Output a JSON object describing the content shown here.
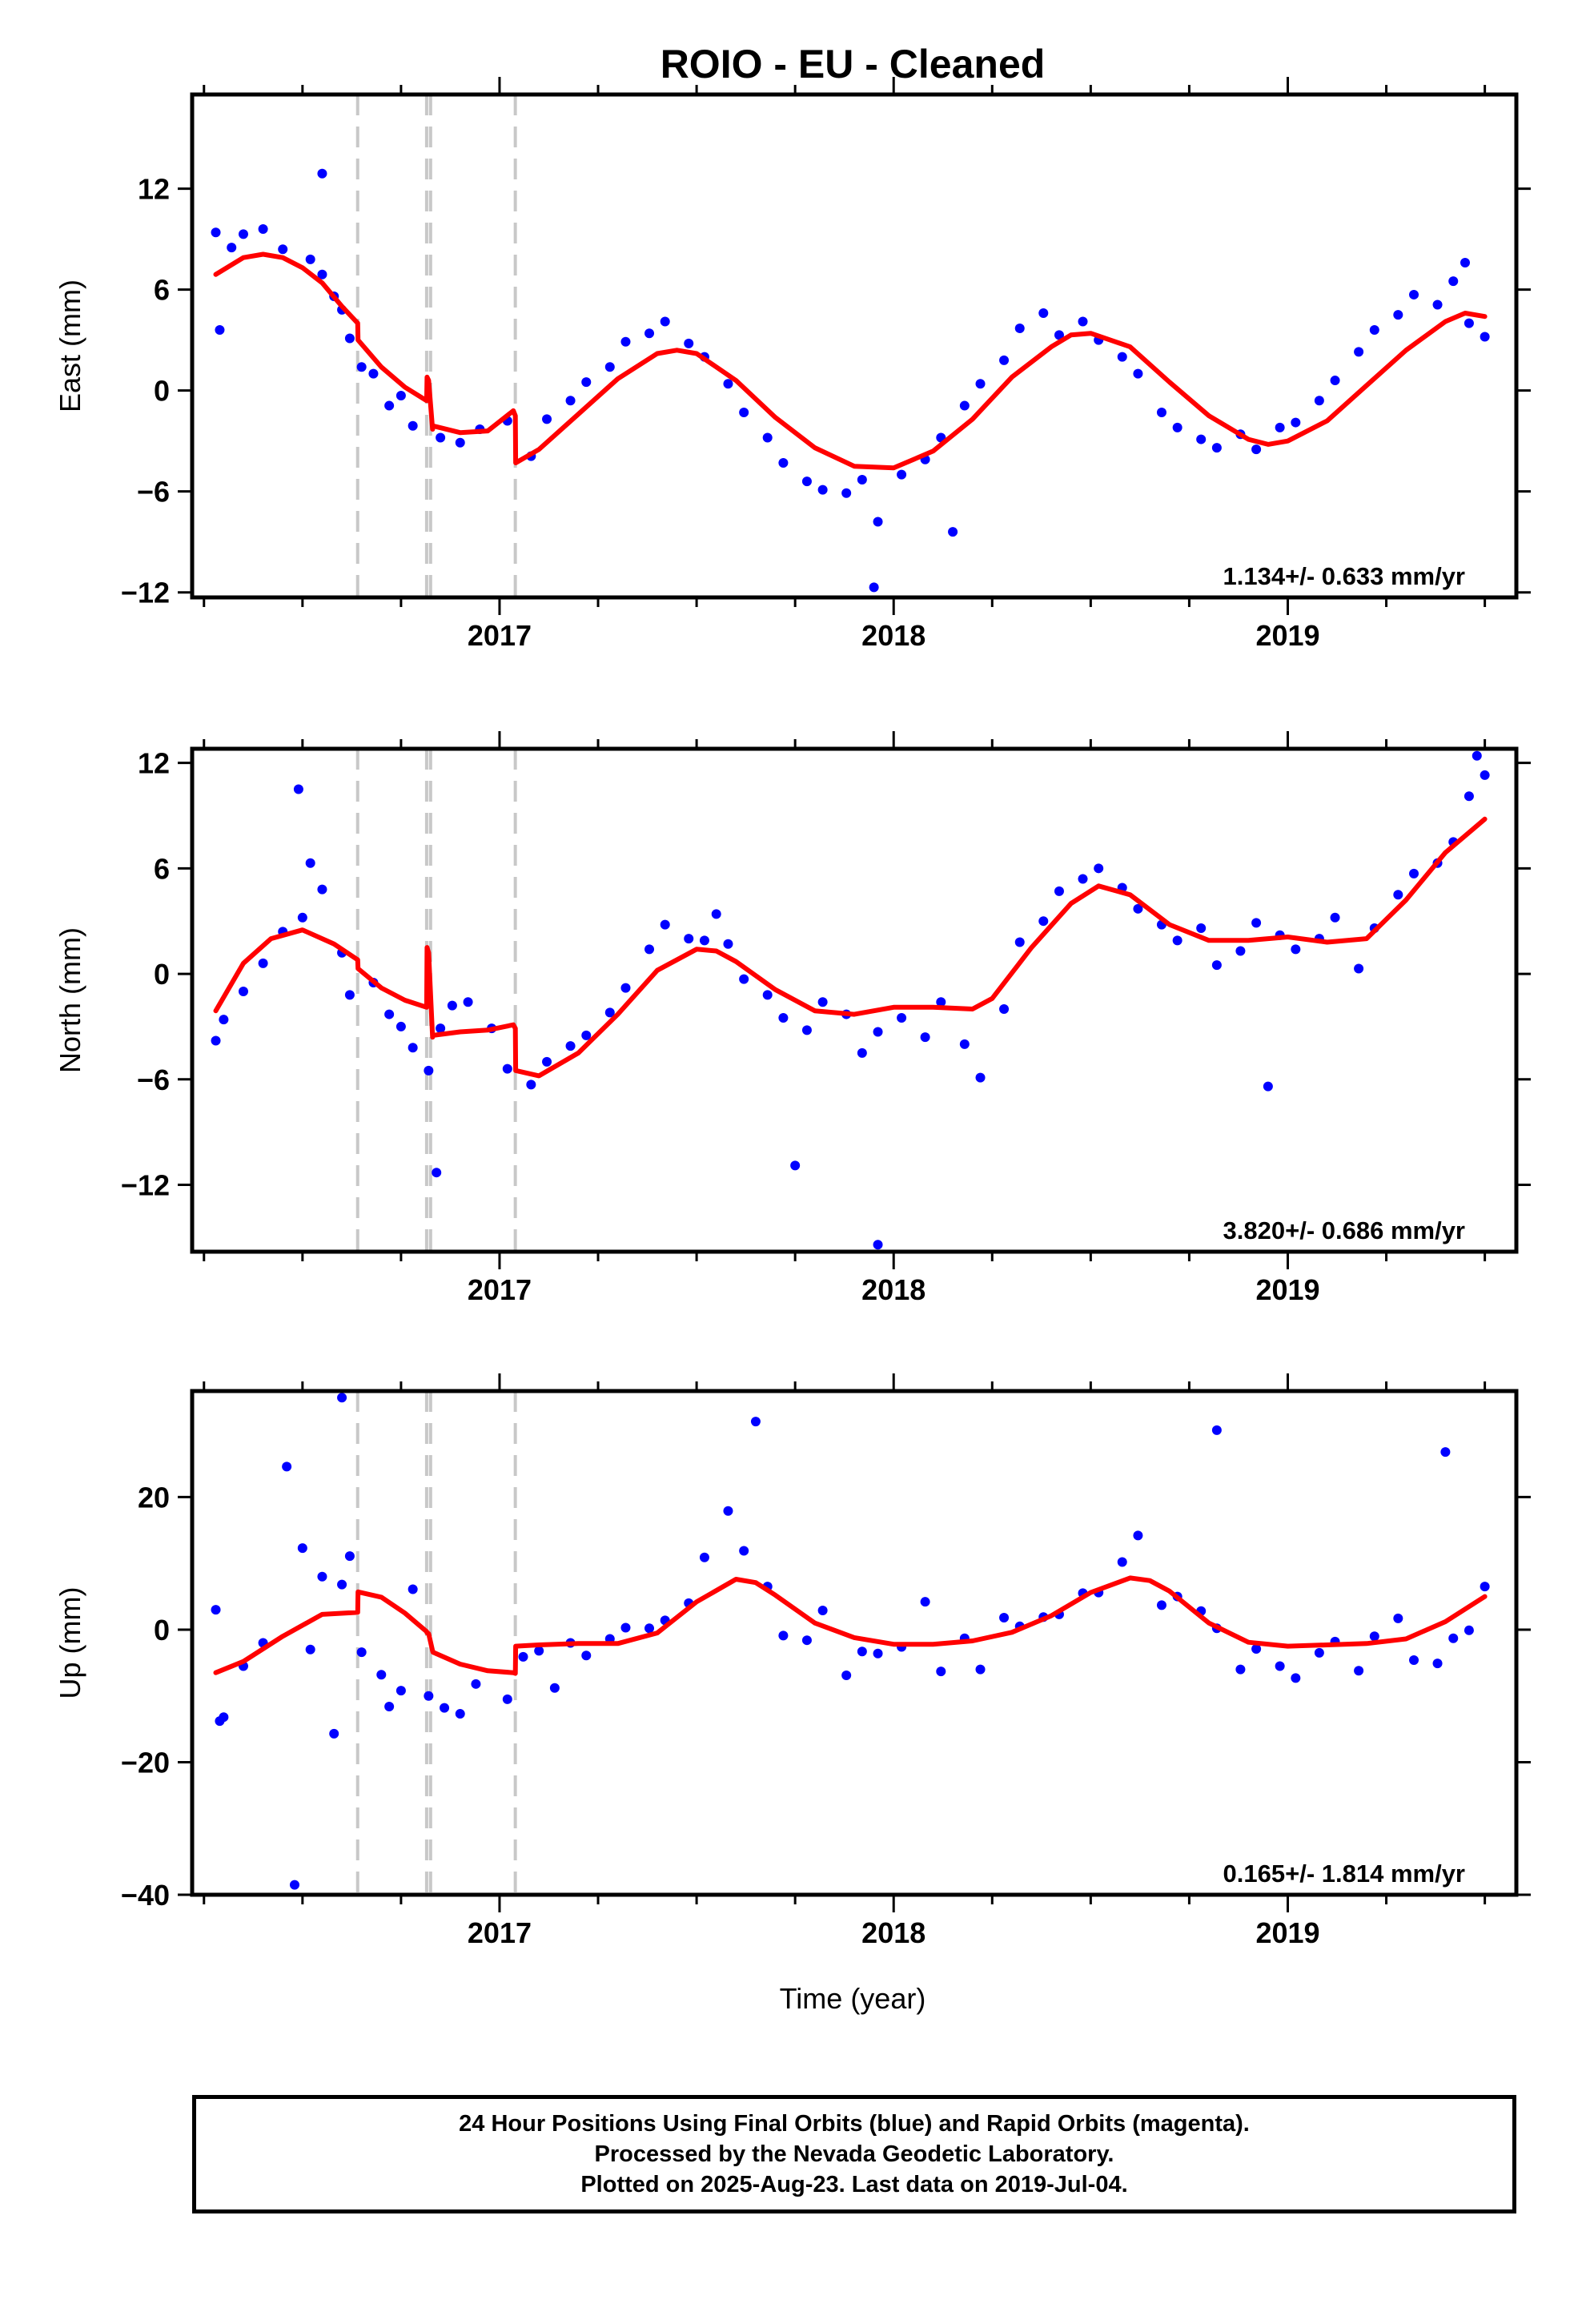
{
  "title": "ROIO  - EU - Cleaned",
  "xlabel": "Time (year)",
  "footer": {
    "line1": "24 Hour Positions Using Final Orbits (blue) and Rapid Orbits (magenta).",
    "line2": "Processed by the Nevada Geodetic Laboratory.",
    "line3": "Plotted on 2025-Aug-23. Last data on 2019-Jul-04."
  },
  "colors": {
    "points": "#0000ff",
    "model": "#ff0000",
    "offsets": "#c8c8c8"
  },
  "chart_data": [
    {
      "type": "scatter",
      "ylabel": "East (mm)",
      "rate": "1.134+/- 0.633 mm/yr",
      "xlim": [
        2016.22,
        2019.58
      ],
      "ylim": [
        -12.3,
        17.6
      ],
      "yticks": [
        -12,
        -6,
        0,
        6,
        12
      ],
      "xticks": [
        2017,
        2018,
        2019
      ],
      "offsets": [
        2016.64,
        2016.815,
        2016.825,
        2017.04
      ],
      "model": {
        "x": [
          2016.28,
          2016.35,
          2016.4,
          2016.45,
          2016.5,
          2016.55,
          2016.6,
          2016.64,
          2016.641,
          2016.7,
          2016.76,
          2016.815,
          2016.816,
          2016.82,
          2016.83,
          2016.831,
          2016.9,
          2016.97,
          2017.035,
          2017.04,
          2017.041,
          2017.1,
          2017.2,
          2017.3,
          2017.4,
          2017.45,
          2017.5,
          2017.6,
          2017.7,
          2017.8,
          2017.9,
          2018.0,
          2018.1,
          2018.2,
          2018.3,
          2018.4,
          2018.45,
          2018.5,
          2018.6,
          2018.7,
          2018.8,
          2018.9,
          2018.95,
          2019.0,
          2019.1,
          2019.2,
          2019.3,
          2019.4,
          2019.45,
          2019.5
        ],
        "y": [
          6.9,
          7.9,
          8.1,
          7.9,
          7.3,
          6.4,
          5.0,
          4.0,
          3.0,
          1.4,
          0.2,
          -0.6,
          0.8,
          0.6,
          -2.3,
          -2.1,
          -2.5,
          -2.4,
          -1.2,
          -1.5,
          -4.3,
          -3.5,
          -1.4,
          0.7,
          2.2,
          2.4,
          2.2,
          0.6,
          -1.6,
          -3.4,
          -4.5,
          -4.6,
          -3.6,
          -1.7,
          0.8,
          2.6,
          3.3,
          3.4,
          2.6,
          0.5,
          -1.5,
          -2.9,
          -3.2,
          -3.0,
          -1.8,
          0.3,
          2.4,
          4.1,
          4.6,
          4.4
        ]
      },
      "points": {
        "x": [
          2016.28,
          2016.29,
          2016.35,
          2016.32,
          2016.4,
          2016.45,
          2016.52,
          2016.55,
          2016.58,
          2016.6,
          2016.62,
          2016.65,
          2016.68,
          2016.72,
          2016.75,
          2016.78,
          2016.85,
          2016.9,
          2016.95,
          2017.02,
          2017.08,
          2017.12,
          2017.18,
          2017.22,
          2017.28,
          2017.32,
          2017.38,
          2017.42,
          2017.48,
          2017.52,
          2017.58,
          2017.62,
          2017.68,
          2017.72,
          2017.78,
          2017.82,
          2017.88,
          2017.92,
          2017.96,
          2018.02,
          2018.08,
          2018.12,
          2018.18,
          2018.22,
          2018.28,
          2018.32,
          2018.38,
          2018.42,
          2018.48,
          2018.52,
          2018.58,
          2018.62,
          2018.68,
          2018.72,
          2018.78,
          2018.82,
          2018.88,
          2018.92,
          2018.98,
          2019.02,
          2019.08,
          2019.12,
          2019.18,
          2019.22,
          2019.28,
          2019.32,
          2019.38,
          2019.42,
          2019.46,
          2019.5,
          2016.55,
          2017.95,
          2018.15,
          2019.45
        ],
        "y": [
          9.4,
          3.6,
          9.3,
          8.5,
          9.6,
          8.4,
          7.8,
          6.9,
          5.6,
          4.8,
          3.1,
          1.4,
          1.0,
          -0.9,
          -0.3,
          -2.1,
          -2.8,
          -3.1,
          -2.3,
          -1.8,
          -3.9,
          -1.7,
          -0.6,
          0.5,
          1.4,
          2.9,
          3.4,
          4.1,
          2.8,
          2.0,
          0.4,
          -1.3,
          -2.8,
          -4.3,
          -5.4,
          -5.9,
          -6.1,
          -5.3,
          -7.8,
          -5.0,
          -4.1,
          -2.8,
          -0.9,
          0.4,
          1.8,
          3.7,
          4.6,
          3.3,
          4.1,
          3.0,
          2.0,
          1.0,
          -1.3,
          -2.2,
          -2.9,
          -3.4,
          -2.6,
          -3.5,
          -2.2,
          -1.9,
          -0.6,
          0.6,
          2.3,
          3.6,
          4.5,
          5.7,
          5.1,
          6.5,
          4.0,
          3.2,
          12.9,
          -11.7,
          -8.4,
          7.6
        ]
      }
    },
    {
      "type": "scatter",
      "ylabel": "North (mm)",
      "rate": "3.820+/- 0.686 mm/yr",
      "xlim": [
        2016.22,
        2019.58
      ],
      "ylim": [
        -15.8,
        12.8
      ],
      "yticks": [
        -12,
        -6,
        0,
        6,
        12
      ],
      "xticks": [
        2017,
        2018,
        2019
      ],
      "offsets": [
        2016.64,
        2016.815,
        2016.825,
        2017.04
      ],
      "model": {
        "x": [
          2016.28,
          2016.35,
          2016.42,
          2016.5,
          2016.58,
          2016.64,
          2016.641,
          2016.7,
          2016.76,
          2016.815,
          2016.816,
          2016.82,
          2016.83,
          2016.831,
          2016.9,
          2016.97,
          2017.035,
          2017.04,
          2017.041,
          2017.1,
          2017.2,
          2017.3,
          2017.4,
          2017.5,
          2017.55,
          2017.6,
          2017.7,
          2017.8,
          2017.9,
          2018.0,
          2018.1,
          2018.2,
          2018.25,
          2018.35,
          2018.45,
          2018.52,
          2018.6,
          2018.7,
          2018.8,
          2018.9,
          2019.0,
          2019.1,
          2019.2,
          2019.3,
          2019.4,
          2019.5
        ],
        "y": [
          -2.1,
          0.6,
          2.0,
          2.5,
          1.7,
          0.8,
          0.3,
          -0.8,
          -1.5,
          -1.9,
          1.5,
          1.2,
          -3.6,
          -3.5,
          -3.3,
          -3.2,
          -2.9,
          -3.1,
          -5.5,
          -5.8,
          -4.5,
          -2.3,
          0.2,
          1.4,
          1.3,
          0.7,
          -0.9,
          -2.1,
          -2.3,
          -1.9,
          -1.9,
          -2.0,
          -1.4,
          1.5,
          4.0,
          5.0,
          4.5,
          2.8,
          1.9,
          1.9,
          2.1,
          1.8,
          2.0,
          4.2,
          6.9,
          8.8
        ]
      },
      "points": {
        "x": [
          2016.28,
          2016.3,
          2016.35,
          2016.4,
          2016.45,
          2016.5,
          2016.52,
          2016.55,
          2016.6,
          2016.62,
          2016.68,
          2016.72,
          2016.75,
          2016.78,
          2016.82,
          2016.85,
          2016.88,
          2016.92,
          2016.98,
          2017.02,
          2017.08,
          2017.12,
          2017.18,
          2017.22,
          2017.28,
          2017.32,
          2017.38,
          2017.42,
          2017.48,
          2017.52,
          2017.55,
          2017.58,
          2017.62,
          2017.68,
          2017.72,
          2017.78,
          2017.82,
          2017.88,
          2017.92,
          2017.96,
          2018.02,
          2018.08,
          2018.12,
          2018.18,
          2018.22,
          2018.28,
          2018.32,
          2018.38,
          2018.42,
          2018.48,
          2018.52,
          2018.58,
          2018.62,
          2018.68,
          2018.72,
          2018.78,
          2018.82,
          2018.88,
          2018.92,
          2018.98,
          2019.02,
          2019.08,
          2019.12,
          2019.18,
          2019.22,
          2019.28,
          2019.32,
          2019.38,
          2019.42,
          2019.46,
          2019.5,
          2016.49,
          2016.84,
          2017.75,
          2017.96,
          2018.95,
          2019.48
        ],
        "y": [
          -3.8,
          -2.6,
          -1.0,
          0.6,
          2.4,
          3.2,
          6.3,
          4.8,
          1.2,
          -1.2,
          -0.5,
          -2.3,
          -3.0,
          -4.2,
          -5.5,
          -3.1,
          -1.8,
          -1.6,
          -3.1,
          -5.4,
          -6.3,
          -5.0,
          -4.1,
          -3.5,
          -2.2,
          -0.8,
          1.4,
          2.8,
          2.0,
          1.9,
          3.4,
          1.7,
          -0.3,
          -1.2,
          -2.5,
          -3.2,
          -1.6,
          -2.3,
          -4.5,
          -3.3,
          -2.5,
          -3.6,
          -1.6,
          -4.0,
          -5.9,
          -2.0,
          1.8,
          3.0,
          4.7,
          5.4,
          6.0,
          4.9,
          3.7,
          2.8,
          1.9,
          2.6,
          0.5,
          1.3,
          2.9,
          2.2,
          1.4,
          2.0,
          3.2,
          0.3,
          2.6,
          4.5,
          5.7,
          6.3,
          7.5,
          10.1,
          11.3,
          10.5,
          -11.3,
          -10.9,
          -15.4,
          -6.4,
          12.4
        ]
      }
    },
    {
      "type": "scatter",
      "ylabel": "Up (mm)",
      "rate": "0.165+/- 1.814 mm/yr",
      "xlim": [
        2016.22,
        2019.58
      ],
      "ylim": [
        -40,
        36
      ],
      "yticks": [
        -40,
        -20,
        0,
        20
      ],
      "xticks": [
        2017,
        2018,
        2019
      ],
      "offsets": [
        2016.64,
        2016.815,
        2016.825,
        2017.04
      ],
      "model": {
        "x": [
          2016.28,
          2016.35,
          2016.45,
          2016.55,
          2016.64,
          2016.641,
          2016.7,
          2016.76,
          2016.815,
          2016.816,
          2016.82,
          2016.83,
          2016.831,
          2016.9,
          2016.97,
          2017.035,
          2017.04,
          2017.041,
          2017.1,
          2017.2,
          2017.3,
          2017.4,
          2017.5,
          2017.6,
          2017.65,
          2017.7,
          2017.8,
          2017.9,
          2018.0,
          2018.1,
          2018.2,
          2018.3,
          2018.4,
          2018.5,
          2018.6,
          2018.65,
          2018.7,
          2018.8,
          2018.9,
          2019.0,
          2019.1,
          2019.2,
          2019.3,
          2019.4,
          2019.5
        ],
        "y": [
          -6.5,
          -4.8,
          -1.0,
          2.3,
          2.6,
          5.7,
          4.9,
          2.5,
          -0.3,
          -0.5,
          -0.6,
          -3.2,
          -3.4,
          -5.2,
          -6.2,
          -6.5,
          -6.6,
          -2.5,
          -2.3,
          -2.1,
          -2.1,
          -0.5,
          4.2,
          7.6,
          7.1,
          5.2,
          1.0,
          -1.2,
          -2.2,
          -2.2,
          -1.7,
          -0.4,
          2.1,
          5.6,
          7.8,
          7.4,
          5.8,
          1.0,
          -1.9,
          -2.5,
          -2.3,
          -2.1,
          -1.4,
          1.2,
          5.0
        ]
      },
      "points": {
        "x": [
          2016.28,
          2016.29,
          2016.3,
          2016.35,
          2016.4,
          2016.46,
          2016.5,
          2016.52,
          2016.55,
          2016.58,
          2016.6,
          2016.62,
          2016.65,
          2016.7,
          2016.72,
          2016.75,
          2016.78,
          2016.82,
          2016.86,
          2016.9,
          2016.94,
          2017.02,
          2017.06,
          2017.1,
          2017.14,
          2017.18,
          2017.22,
          2017.28,
          2017.32,
          2017.38,
          2017.42,
          2017.48,
          2017.52,
          2017.58,
          2017.62,
          2017.68,
          2017.72,
          2017.78,
          2017.82,
          2017.88,
          2017.92,
          2017.96,
          2018.02,
          2018.08,
          2018.12,
          2018.18,
          2018.22,
          2018.28,
          2018.32,
          2018.38,
          2018.42,
          2018.48,
          2018.52,
          2018.58,
          2018.62,
          2018.68,
          2018.72,
          2018.78,
          2018.82,
          2018.88,
          2018.92,
          2018.98,
          2019.02,
          2019.08,
          2019.12,
          2019.18,
          2019.22,
          2019.28,
          2019.32,
          2019.38,
          2019.42,
          2019.46,
          2019.5,
          2016.6,
          2016.48,
          2017.65,
          2018.82,
          2019.4
        ],
        "y": [
          3.0,
          -13.8,
          -13.2,
          -5.5,
          -2.0,
          24.6,
          12.3,
          -3.0,
          8.0,
          -15.7,
          6.8,
          11.1,
          -3.4,
          -6.8,
          -11.6,
          -9.2,
          6.1,
          -10.0,
          -11.8,
          -12.7,
          -8.2,
          -10.5,
          -4.1,
          -3.2,
          -8.8,
          -2.0,
          -3.9,
          -1.4,
          0.3,
          0.2,
          1.4,
          4.0,
          10.9,
          17.9,
          11.9,
          6.5,
          -0.9,
          -1.6,
          2.9,
          -6.9,
          -3.3,
          -3.6,
          -2.6,
          4.2,
          -6.3,
          -1.3,
          -6.0,
          1.8,
          0.5,
          1.9,
          2.3,
          5.5,
          5.6,
          10.2,
          14.2,
          3.7,
          5.0,
          2.8,
          0.2,
          -6.0,
          -2.9,
          -5.5,
          -7.3,
          -3.5,
          -1.8,
          -6.2,
          -1.0,
          1.7,
          -4.6,
          -5.1,
          -1.3,
          -0.1,
          6.5,
          35.0,
          -38.5,
          31.4,
          30.1,
          26.8
        ]
      }
    }
  ]
}
